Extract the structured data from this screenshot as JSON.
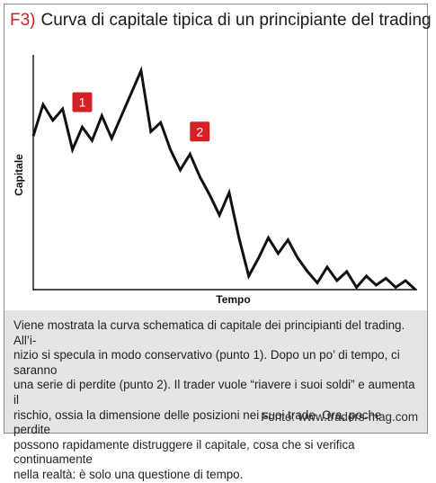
{
  "figure": {
    "number": "F3)",
    "title": "Curva di capitale tipica di un principiante del trading"
  },
  "chart_data": {
    "type": "line",
    "xlabel": "Tempo",
    "ylabel": "Capitale",
    "grid": false,
    "x": [
      0,
      1,
      2,
      3,
      4,
      5,
      6,
      7,
      8,
      9,
      10,
      11,
      12,
      13,
      14,
      15,
      16,
      17,
      18,
      19,
      20,
      21,
      22,
      23,
      24,
      25,
      26,
      27,
      28,
      29,
      30,
      31,
      32,
      33,
      34,
      35,
      36,
      37,
      38,
      39
    ],
    "series": [
      {
        "values": [
          68,
          82,
          75,
          80,
          62,
          72,
          66,
          77,
          67,
          77,
          87,
          97,
          70,
          74,
          62,
          53,
          60,
          50,
          42,
          33,
          43,
          23,
          6,
          14,
          23,
          16,
          22,
          14,
          8,
          3,
          10,
          4,
          8,
          1,
          6,
          2,
          5,
          1,
          4,
          0
        ]
      }
    ],
    "annotations": [
      {
        "label": "1",
        "x": 5,
        "y": 83
      },
      {
        "label": "2",
        "x": 17,
        "y": 70
      }
    ],
    "line_color": "#111111",
    "badge_color": "#d42027"
  },
  "caption": {
    "lines": [
      "Viene mostrata la curva schematica di capitale dei principianti del trading. All’i-",
      "nizio si specula in modo conservativo (punto 1). Dopo un po’ di tempo, ci saranno",
      "una serie di perdite (punto 2). Il trader vuole “riavere i suoi soldi” e aumenta il",
      "rischio, ossia la dimensione delle posizioni nei suoi trade. Ora, poche perdite",
      "possono rapidamente distruggere il capitale, cosa che si verifica continuamente",
      "nella realtà: è solo una questione di tempo."
    ],
    "source": "Fonte: www.traders-mag.com"
  }
}
